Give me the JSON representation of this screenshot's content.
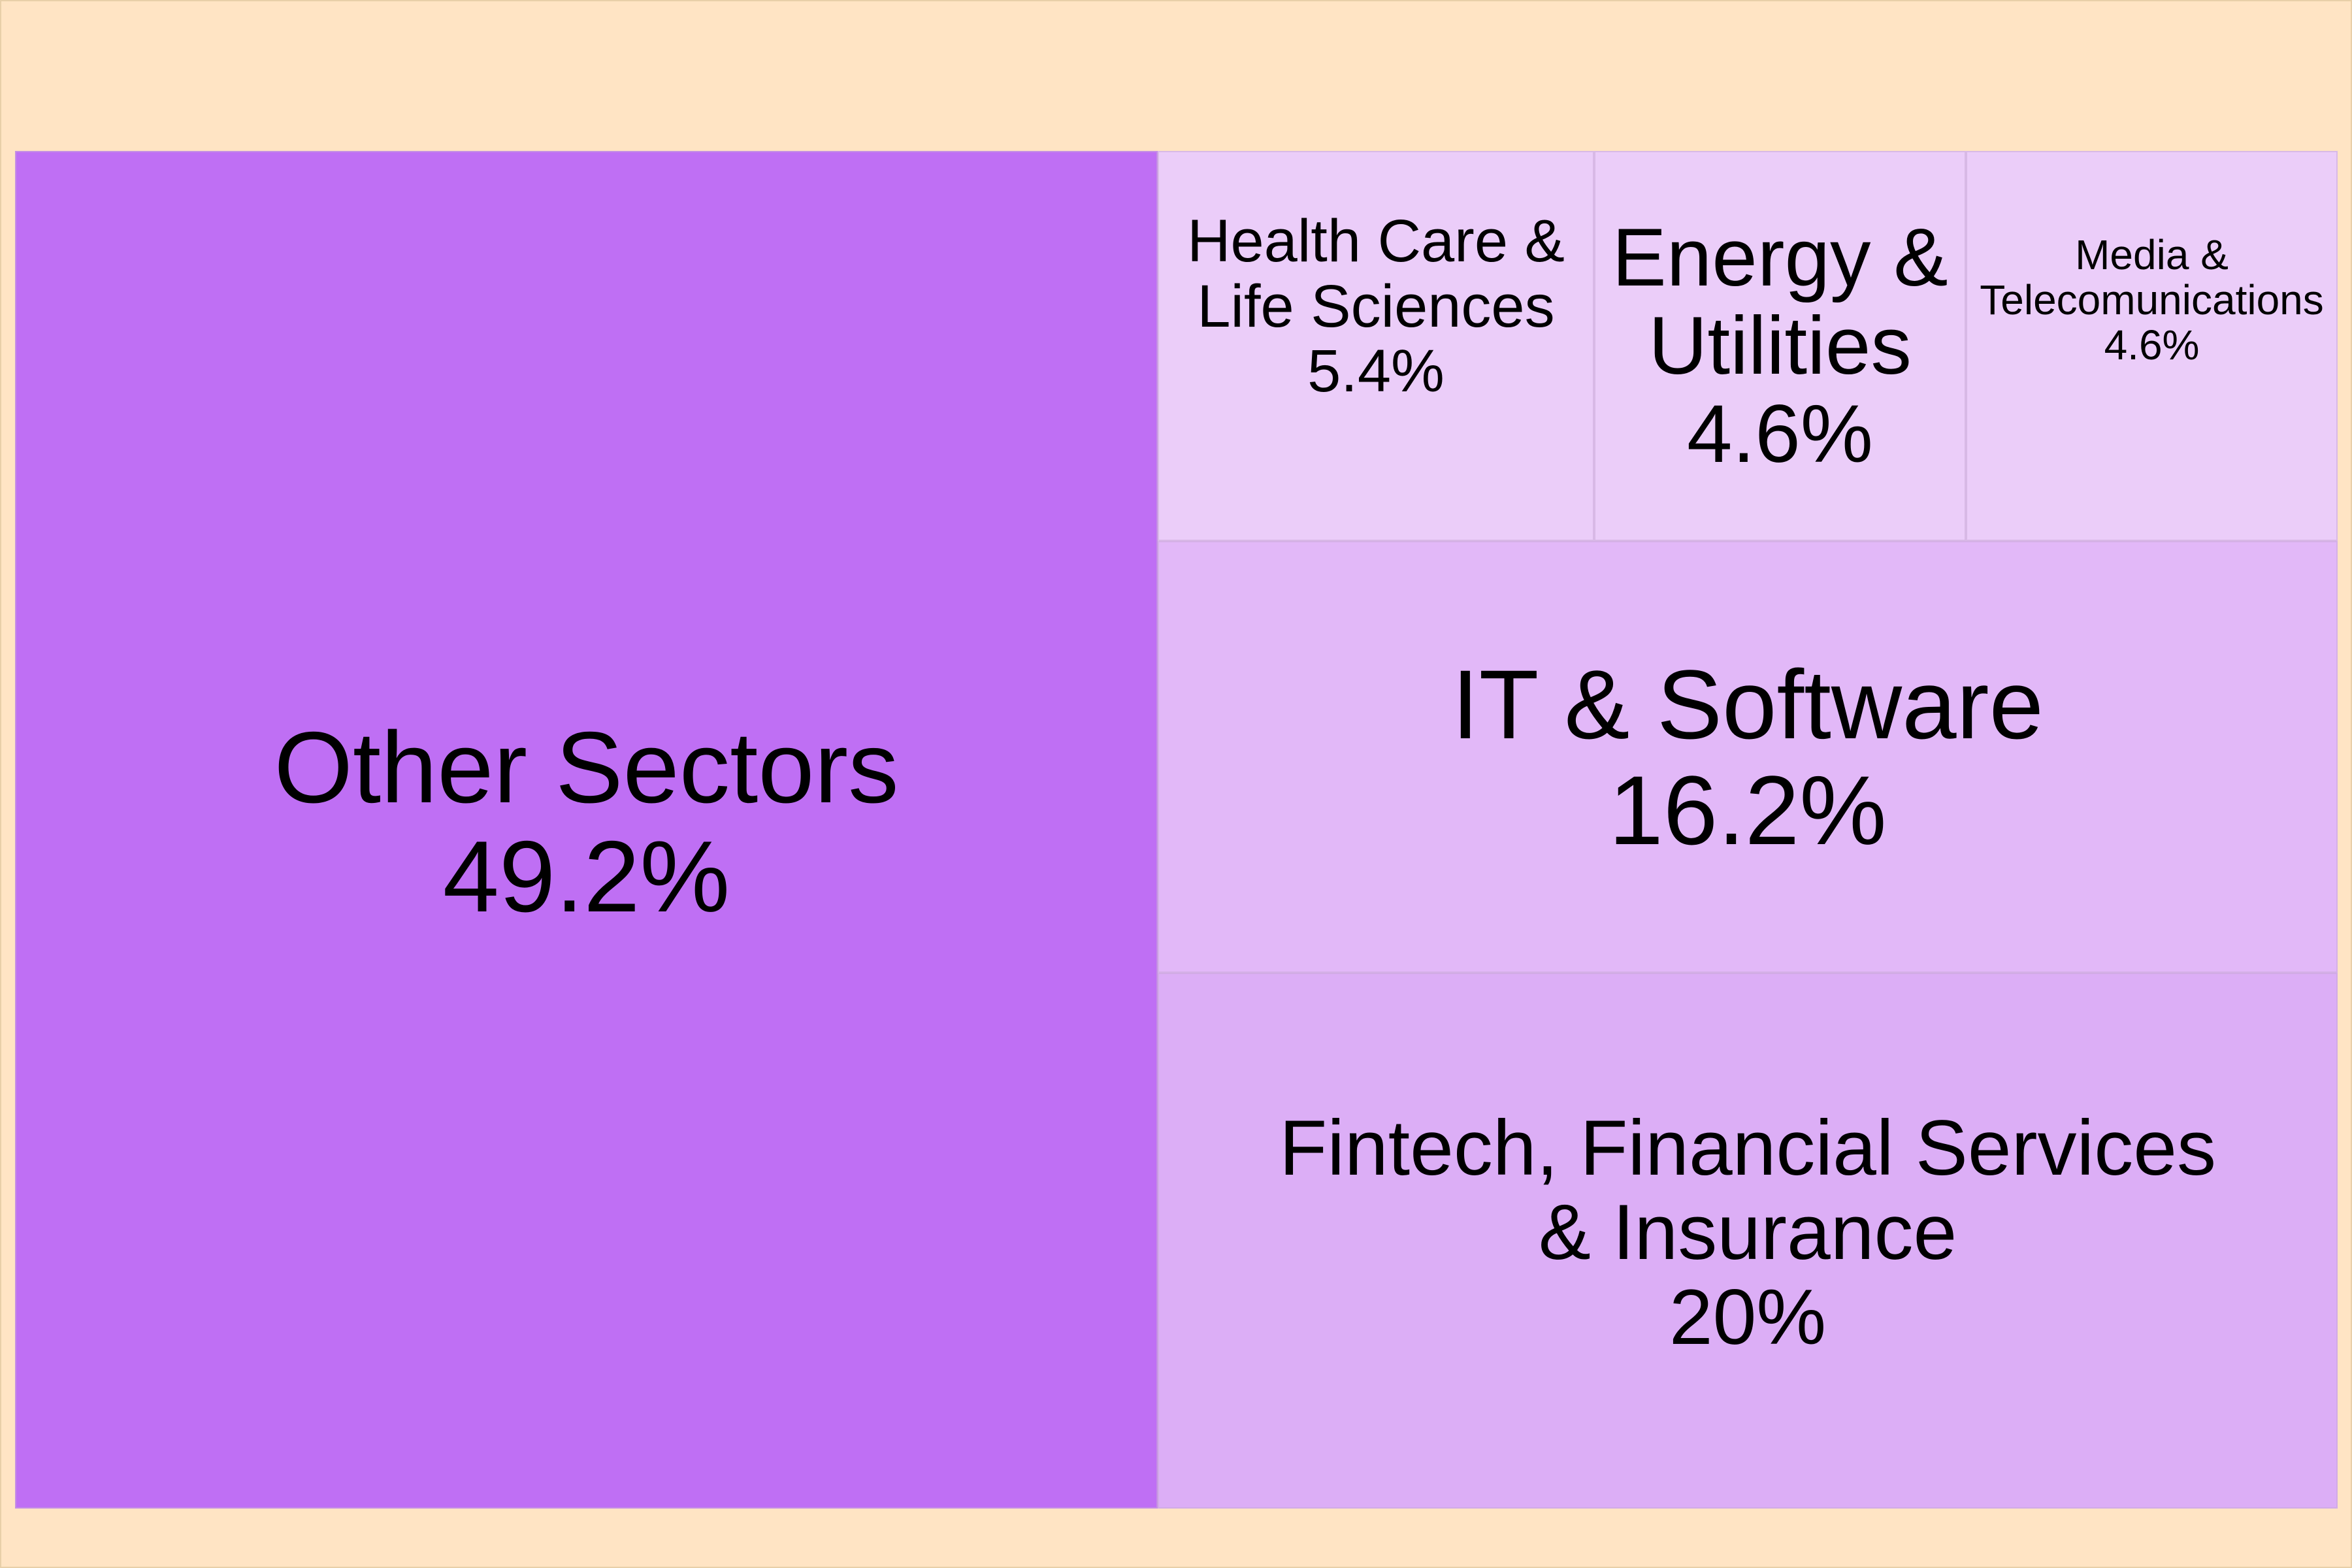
{
  "chart_data": {
    "type": "treemap",
    "title": "",
    "items": [
      {
        "name": "Other Sectors",
        "label": "Other Sectors",
        "value": 49.2,
        "value_label": "49.2%",
        "color": "#bf6ff4"
      },
      {
        "name": "Fintech, Financial Services & Insurance",
        "label": "Fintech, Financial Services\n& Insurance",
        "value": 20.0,
        "value_label": "20%",
        "color": "#dcaef6"
      },
      {
        "name": "IT & Software",
        "label": "IT & Software",
        "value": 16.2,
        "value_label": "16.2%",
        "color": "#e2b8f8"
      },
      {
        "name": "Health Care & Life Sciences",
        "label": "Health Care &\nLife Sciences",
        "value": 5.4,
        "value_label": "5.4%",
        "color": "#ebcdf9"
      },
      {
        "name": "Energy & Utilities",
        "label": "Energy &\nUtilities",
        "value": 4.6,
        "value_label": "4.6%",
        "color": "#ebcdf9"
      },
      {
        "name": "Media & Telecomunications",
        "label": "Media &\nTelecomunications",
        "value": 4.6,
        "value_label": "4.6%",
        "color": "#ebcdf9"
      }
    ],
    "background_color": "#ffe4c4"
  }
}
